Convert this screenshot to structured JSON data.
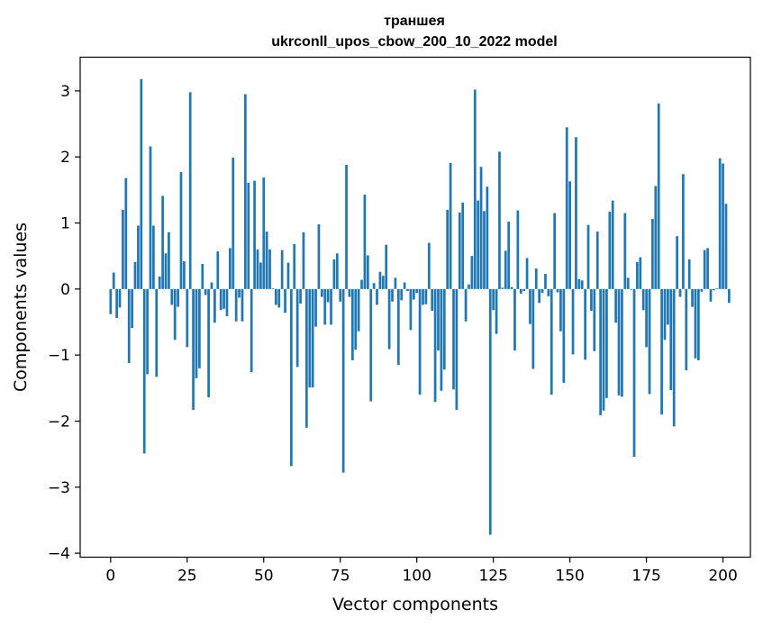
{
  "chart_data": {
    "type": "bar",
    "title": "траншея",
    "subtitle": "ukrconll_upos_cbow_200_10_2022 model",
    "xlabel": "Vector components",
    "ylabel": "Components values",
    "xlim": [
      -9.95,
      208.95
    ],
    "ylim": [
      -4.06,
      3.51
    ],
    "xticks": [
      0,
      25,
      50,
      75,
      100,
      125,
      150,
      175,
      200
    ],
    "yticks": [
      -4,
      -3,
      -2,
      -1,
      0,
      1,
      2,
      3
    ],
    "bar_color": "#1f77b4",
    "grid": false,
    "values": [
      -0.38,
      0.25,
      -0.44,
      -0.28,
      1.2,
      1.68,
      -1.12,
      -0.59,
      0.41,
      0.96,
      3.18,
      -2.49,
      -1.29,
      2.16,
      0.96,
      -1.33,
      0.19,
      1.41,
      0.54,
      0.86,
      -0.24,
      -0.77,
      -0.27,
      1.77,
      0.42,
      -0.88,
      2.98,
      -1.83,
      -1.35,
      -1.2,
      0.38,
      -0.09,
      -1.64,
      0.1,
      -0.51,
      0.57,
      -0.32,
      -0.3,
      -0.41,
      0.62,
      1.99,
      -0.49,
      -0.13,
      -0.49,
      2.95,
      1.61,
      -1.26,
      1.64,
      0.6,
      0.4,
      1.69,
      0.87,
      0.6,
      0.01,
      -0.24,
      -0.28,
      0.59,
      -0.36,
      0.4,
      -2.68,
      0.68,
      -1.18,
      -0.22,
      0.86,
      -2.1,
      -1.49,
      -1.49,
      -0.57,
      0.98,
      -0.12,
      -0.54,
      -0.2,
      -0.54,
      0.45,
      0.54,
      -0.19,
      -2.78,
      1.88,
      -0.12,
      -1.08,
      -0.92,
      -0.64,
      0.14,
      1.43,
      0.51,
      -1.7,
      0.09,
      -0.24,
      0.26,
      0.2,
      0.67,
      -0.91,
      -0.19,
      0.17,
      -1.15,
      -0.17,
      0.1,
      -0.03,
      -0.62,
      -0.16,
      -0.06,
      -1.6,
      -0.24,
      -0.23,
      0.7,
      -0.33,
      -1.71,
      -0.93,
      -1.54,
      -1.22,
      1.2,
      1.91,
      -1.52,
      -1.83,
      1.16,
      1.31,
      -0.49,
      0.07,
      0.5,
      3.02,
      1.34,
      1.85,
      1.18,
      1.55,
      -3.72,
      -0.32,
      -0.68,
      2.08,
      0.02,
      0.58,
      1.02,
      0.03,
      -0.93,
      1.19,
      -0.07,
      -0.03,
      0.47,
      -0.53,
      -1.21,
      0.31,
      -0.21,
      -0.06,
      0.23,
      -0.11,
      -1.6,
      1.15,
      -0.05,
      -0.64,
      -1.42,
      2.45,
      1.63,
      -0.99,
      2.3,
      0.15,
      0.13,
      -1.07,
      0.97,
      -0.33,
      -0.94,
      0.87,
      -1.91,
      -1.84,
      -1.65,
      1.17,
      1.34,
      -0.51,
      -1.61,
      -1.63,
      1.15,
      0.17,
      -0.01,
      -2.54,
      0.41,
      0.48,
      -0.32,
      -0.88,
      -1.59,
      1.06,
      1.56,
      2.81,
      -1.9,
      -0.77,
      -0.54,
      -1.53,
      -2.08,
      0.8,
      -0.12,
      1.74,
      -1.23,
      0.45,
      -0.27,
      -1.05,
      -1.08,
      -0.04,
      0.59,
      0.62,
      -0.19,
      -0.02,
      0.01,
      1.98,
      1.9,
      1.29,
      -0.21
    ]
  }
}
